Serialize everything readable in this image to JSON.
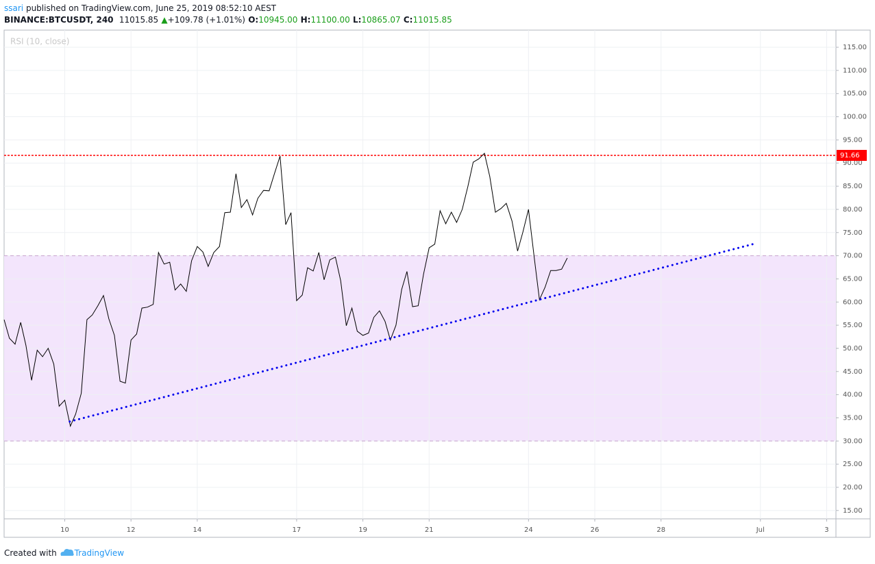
{
  "header": {
    "author": "ssari",
    "published": "published on TradingView.com, June 25, 2019 08:52:10 AEST",
    "symbol": "BINANCE:BTCUSDT, 240",
    "last": "11015.85",
    "change": "+109.78 (+1.01%)",
    "open_label": "O:",
    "open": "10945.00",
    "high_label": "H:",
    "high": "11100.00",
    "low_label": "L:",
    "low": "10865.07",
    "close_label": "C:",
    "close": "11015.85"
  },
  "footer": {
    "created": "Created with",
    "brand": "TradingView"
  },
  "chart_data": {
    "type": "line",
    "x": [
      8.17,
      8.33,
      8.5,
      8.67,
      8.83,
      9,
      9.17,
      9.33,
      9.5,
      9.67,
      9.83,
      10,
      10.17,
      10.33,
      10.5,
      10.67,
      10.83,
      11,
      11.17,
      11.33,
      11.5,
      11.67,
      11.83,
      12,
      12.17,
      12.33,
      12.5,
      12.67,
      12.83,
      13,
      13.17,
      13.33,
      13.5,
      13.67,
      13.83,
      14,
      14.17,
      14.33,
      14.5,
      14.67,
      14.83,
      15,
      15.17,
      15.33,
      15.5,
      15.67,
      15.83,
      16,
      16.17,
      16.33,
      16.5,
      16.67,
      16.83,
      17,
      17.17,
      17.33,
      17.5,
      17.67,
      17.83,
      18,
      18.17,
      18.33,
      18.5,
      18.67,
      18.83,
      19,
      19.17,
      19.33,
      19.5,
      19.67,
      19.83,
      20,
      20.17,
      20.33,
      20.5,
      20.67,
      20.83,
      21,
      21.17,
      21.33,
      21.5,
      21.67,
      21.83,
      22,
      22.17,
      22.33,
      22.5,
      22.67,
      22.83,
      23,
      23.17,
      23.33,
      23.5,
      23.67,
      23.83,
      24,
      24.17,
      24.33,
      24.5,
      24.67,
      24.83,
      25,
      25.17
    ],
    "series": [
      {
        "name": "RSI (10, close)",
        "color": "#000000",
        "values": [
          56.2,
          52.2,
          50.9,
          55.6,
          50.6,
          43.1,
          49.6,
          48.2,
          50.0,
          46.6,
          37.5,
          38.8,
          33.2,
          35.8,
          40.3,
          56.2,
          57.2,
          59.2,
          61.4,
          56.4,
          52.8,
          42.9,
          42.5,
          51.8,
          53.1,
          58.7,
          58.9,
          59.5,
          70.7,
          68.2,
          68.6,
          62.6,
          63.9,
          62.3,
          68.9,
          72.0,
          70.8,
          67.7,
          70.7,
          72.0,
          79.3,
          79.4,
          87.7,
          80.4,
          82.1,
          78.8,
          82.4,
          84.1,
          84.0,
          87.7,
          91.5,
          76.7,
          79.3,
          60.3,
          61.5,
          67.4,
          66.7,
          70.7,
          64.8,
          69.1,
          69.7,
          64.6,
          54.9,
          58.7,
          53.7,
          52.8,
          53.3,
          56.7,
          58.1,
          55.8,
          51.8,
          55.0,
          62.7,
          66.6,
          59.0,
          59.2,
          66.0,
          71.7,
          72.5,
          79.7,
          76.9,
          79.4,
          77.2,
          80.0,
          85.0,
          90.2,
          90.9,
          92.1,
          87.1,
          79.4,
          80.2,
          81.3,
          77.5,
          71.0,
          75.1,
          80.0,
          69.7,
          60.5,
          63.2,
          66.8,
          66.8,
          67.1,
          69.5
        ]
      }
    ],
    "band": [
      70,
      30
    ],
    "band_color": "#f3e5fc",
    "hline": {
      "value": 91.66,
      "label": "91.66",
      "color": "#ff0000"
    },
    "trendline": {
      "x": [
        10.15,
        30.83
      ],
      "values": [
        34.2,
        72.6
      ],
      "color": "#0000ee"
    },
    "xlim": [
      8.17,
      33.28
    ],
    "ylim": [
      13.2,
      118.7
    ],
    "xticks": [
      10,
      12,
      14,
      17,
      19,
      21,
      24,
      26,
      28,
      {
        "value": 31,
        "label": "Jul"
      },
      {
        "value": 33,
        "label": "3"
      }
    ],
    "yticks": [
      {
        "value": 15,
        "label": "15.00"
      },
      {
        "value": 20,
        "label": "20.00"
      },
      {
        "value": 25,
        "label": "25.00"
      },
      {
        "value": 30,
        "label": "30.00"
      },
      {
        "value": 35,
        "label": "35.00"
      },
      {
        "value": 40,
        "label": "40.00"
      },
      {
        "value": 45,
        "label": "45.00"
      },
      {
        "value": 50,
        "label": "50.00"
      },
      {
        "value": 55,
        "label": "55.00"
      },
      {
        "value": 60,
        "label": "60.00"
      },
      {
        "value": 65,
        "label": "65.00"
      },
      {
        "value": 70,
        "label": "70.00"
      },
      {
        "value": 75,
        "label": "75.00"
      },
      {
        "value": 80,
        "label": "80.00"
      },
      {
        "value": 85,
        "label": "85.00"
      },
      {
        "value": 90,
        "label": "90.00"
      },
      {
        "value": 95,
        "label": "95.00"
      },
      {
        "value": 100,
        "label": "100.00"
      },
      {
        "value": 105,
        "label": "105.00"
      },
      {
        "value": 110,
        "label": "110.00"
      },
      {
        "value": 115,
        "label": "115.00"
      }
    ],
    "grid": true
  }
}
